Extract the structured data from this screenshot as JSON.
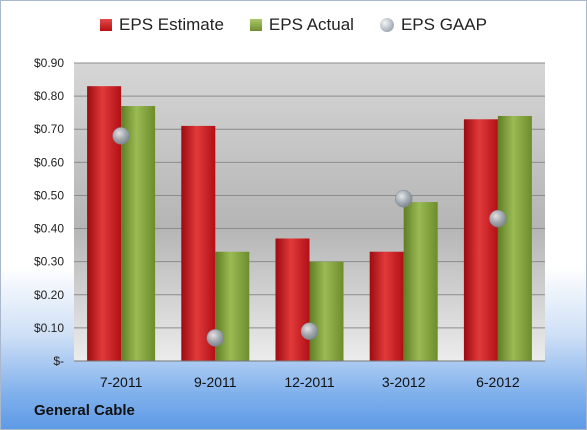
{
  "chart_data": {
    "type": "bar",
    "categories": [
      "7-2011",
      "9-2011",
      "12-2011",
      "3-2012",
      "6-2012"
    ],
    "series": [
      {
        "name": "EPS Estimate",
        "kind": "bar",
        "color": "#c0141a",
        "values": [
          0.83,
          0.71,
          0.37,
          0.33,
          0.73
        ]
      },
      {
        "name": "EPS Actual",
        "kind": "bar",
        "color": "#7d9c3a",
        "values": [
          0.77,
          0.33,
          0.3,
          0.48,
          0.74
        ]
      },
      {
        "name": "EPS GAAP",
        "kind": "marker",
        "color": "#a7afb8",
        "values": [
          0.68,
          0.07,
          0.09,
          0.49,
          0.43
        ]
      }
    ],
    "yticks": [
      "$-",
      "$0.10",
      "$0.20",
      "$0.30",
      "$0.40",
      "$0.50",
      "$0.60",
      "$0.70",
      "$0.80",
      "$0.90"
    ],
    "ylim": [
      0,
      0.9
    ],
    "grid": true,
    "legend_position": "top"
  },
  "footer": {
    "company": "General Cable"
  }
}
